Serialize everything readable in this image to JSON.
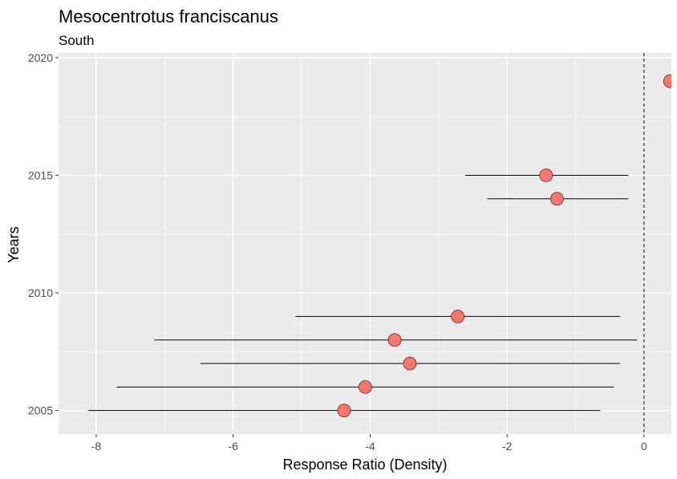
{
  "chart_data": {
    "type": "scatter",
    "title": "Mesocentrotus franciscanus",
    "subtitle": "South",
    "xlabel": "Response Ratio (Density)",
    "ylabel": "Years",
    "xlim": [
      -8.55,
      0.4
    ],
    "ylim": [
      2004.0,
      2020.2
    ],
    "x_ticks": [
      -8,
      -6,
      -4,
      -2,
      0
    ],
    "x_tick_labels": [
      "-8",
      "-6",
      "-4",
      "-2",
      "0"
    ],
    "y_ticks": [
      2005,
      2010,
      2015,
      2020
    ],
    "y_tick_labels": [
      "2005",
      "2010",
      "2015",
      "2020"
    ],
    "reference_line_x": 0,
    "grid": true,
    "point_color": "#f8766d",
    "points": [
      {
        "year": 2005,
        "estimate": -4.38,
        "lower": -8.12,
        "upper": -0.64
      },
      {
        "year": 2006,
        "estimate": -4.07,
        "lower": -7.7,
        "upper": -0.44
      },
      {
        "year": 2007,
        "estimate": -3.42,
        "lower": -6.48,
        "upper": -0.35
      },
      {
        "year": 2008,
        "estimate": -3.64,
        "lower": -7.15,
        "upper": -0.1
      },
      {
        "year": 2009,
        "estimate": -2.72,
        "lower": -5.09,
        "upper": -0.35
      },
      {
        "year": 2014,
        "estimate": -1.27,
        "lower": -2.29,
        "upper": -0.23
      },
      {
        "year": 2015,
        "estimate": -1.43,
        "lower": -2.61,
        "upper": -0.23
      },
      {
        "year": 2019,
        "estimate": 0.38
      }
    ]
  }
}
